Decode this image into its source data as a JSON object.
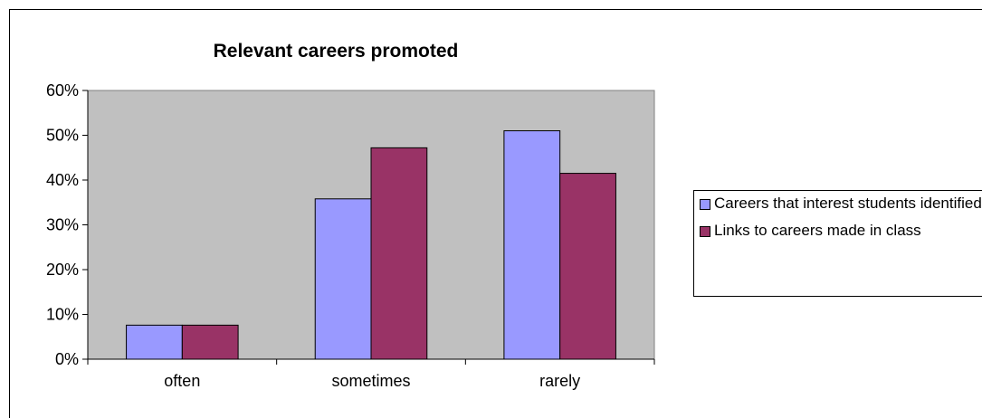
{
  "colors": {
    "plot_background": "#c0c0c0",
    "series_1": "#9999ff",
    "series_2": "#993366"
  },
  "chart_data": {
    "type": "bar",
    "title": "Relevant careers promoted",
    "categories": [
      "often",
      "sometimes",
      "rarely"
    ],
    "series": [
      {
        "name": "Careers that interest students identified",
        "values": [
          0.076,
          0.358,
          0.51
        ],
        "color": "#9999ff"
      },
      {
        "name": "Links to careers made in class",
        "values": [
          0.076,
          0.472,
          0.415
        ],
        "color": "#993366"
      }
    ],
    "ylim": [
      0,
      0.6
    ],
    "yticks": [
      0,
      0.1,
      0.2,
      0.3,
      0.4,
      0.5,
      0.6
    ],
    "ytick_labels": [
      "0%",
      "10%",
      "20%",
      "30%",
      "40%",
      "50%",
      "60%"
    ],
    "grid": false,
    "legend_position": "right"
  }
}
